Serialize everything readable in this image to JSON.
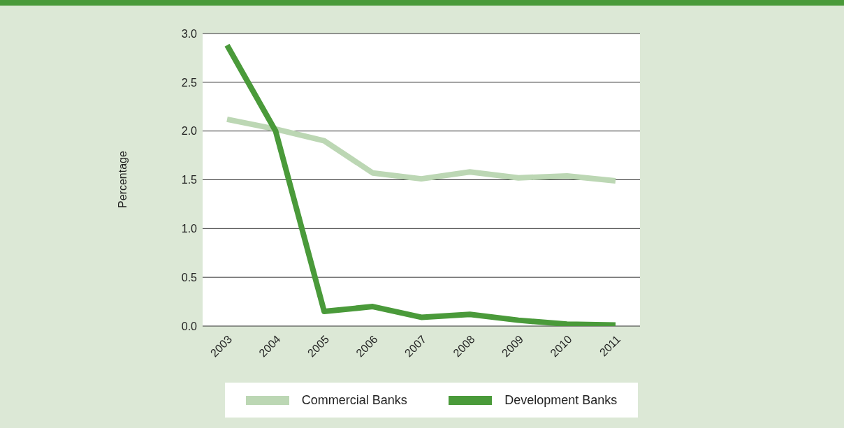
{
  "chart_data": {
    "type": "line",
    "ylabel": "Percentage",
    "categories": [
      "2003",
      "2004",
      "2005",
      "2006",
      "2007",
      "2008",
      "2009",
      "2010",
      "2011"
    ],
    "series": [
      {
        "name": "Commercial Banks",
        "color": "#bcd7b4",
        "values": [
          2.12,
          2.02,
          1.9,
          1.57,
          1.51,
          1.58,
          1.52,
          1.54,
          1.49
        ]
      },
      {
        "name": "Development Banks",
        "color": "#4a9a3a",
        "values": [
          2.88,
          2.0,
          0.15,
          0.2,
          0.09,
          0.12,
          0.06,
          0.02,
          0.01
        ]
      }
    ],
    "ylim": [
      0,
      3
    ],
    "yticks": [
      {
        "value": 0,
        "label": "0.0"
      },
      {
        "value": 0.5,
        "label": "0.5"
      },
      {
        "value": 1,
        "label": "1.0"
      },
      {
        "value": 1.5,
        "label": "1.5"
      },
      {
        "value": 2,
        "label": "2.0"
      },
      {
        "value": 2.5,
        "label": "2.5"
      },
      {
        "value": 3,
        "label": "3.0"
      }
    ],
    "grid": "y",
    "legend": "bottom",
    "line_style": "solid"
  }
}
